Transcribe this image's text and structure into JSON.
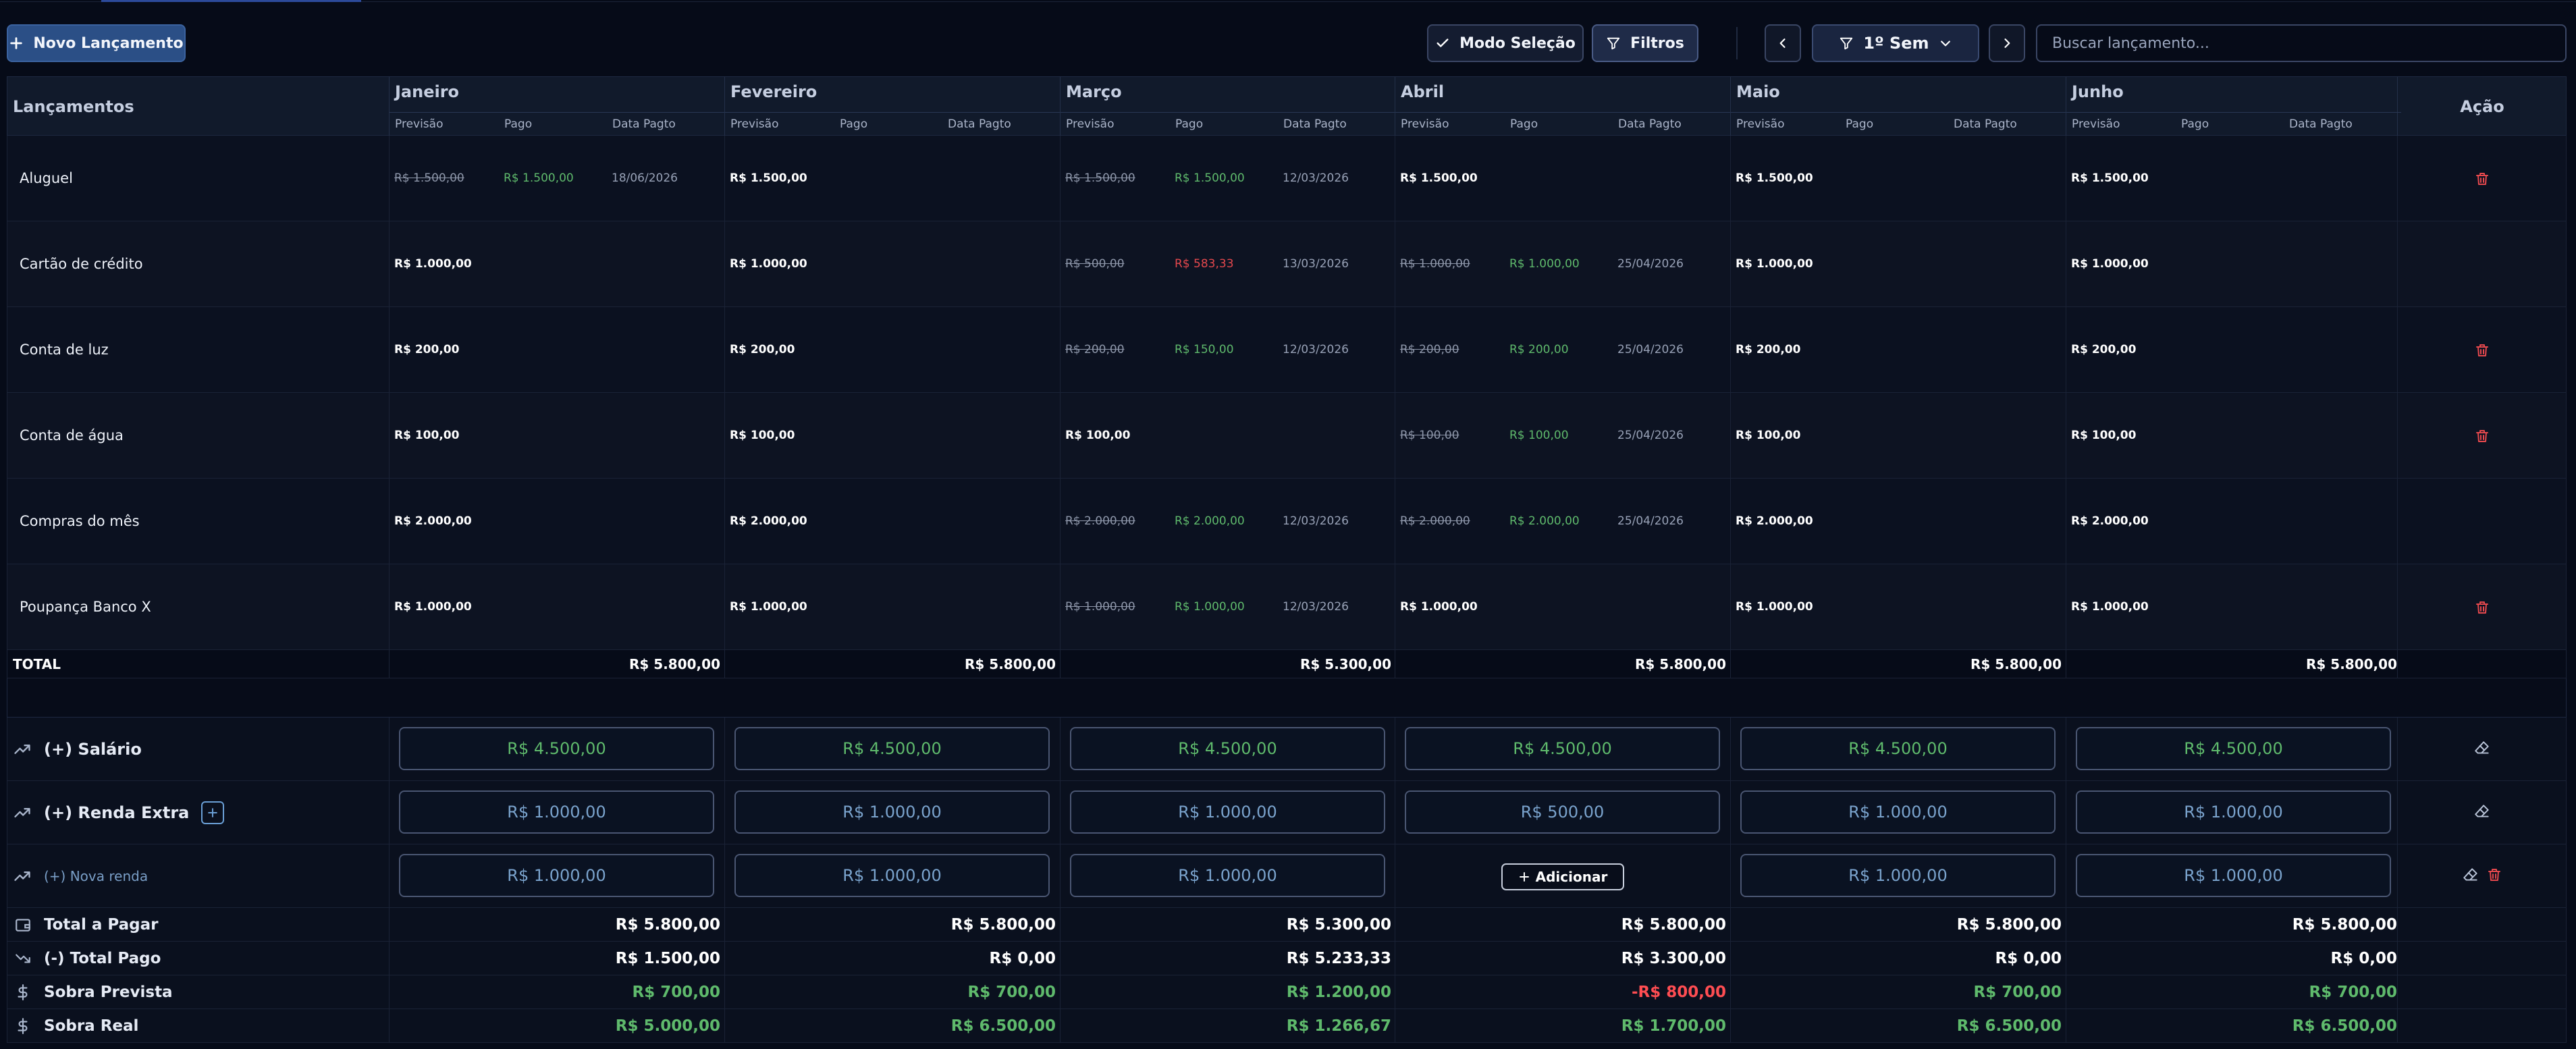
{
  "toolbar": {
    "new_label": "Novo Lançamento",
    "selection_label": "Modo Seleção",
    "filters_label": "Filtros",
    "period_label": "1º Sem",
    "search_placeholder": "Buscar lançamento..."
  },
  "table": {
    "entries_header": "Lançamentos",
    "action_header": "Ação",
    "sub_headers": {
      "forecast": "Previsão",
      "paid": "Pago",
      "date": "Data Pagto"
    },
    "months": [
      "Janeiro",
      "Fevereiro",
      "Março",
      "Abril",
      "Maio",
      "Junho"
    ],
    "rows": [
      {
        "name": "Aluguel",
        "deletable": true,
        "cells": [
          {
            "forecast": "R$ 1.500,00",
            "paid": "R$ 1.500,00",
            "date": "18/06/2026",
            "strike": true,
            "over": false
          },
          {
            "forecast": "R$ 1.500,00",
            "paid": "",
            "date": "",
            "strike": false,
            "over": false
          },
          {
            "forecast": "R$ 1.500,00",
            "paid": "R$ 1.500,00",
            "date": "12/03/2026",
            "strike": true,
            "over": false
          },
          {
            "forecast": "R$ 1.500,00",
            "paid": "",
            "date": "",
            "strike": false,
            "over": false
          },
          {
            "forecast": "R$ 1.500,00",
            "paid": "",
            "date": "",
            "strike": false,
            "over": false
          },
          {
            "forecast": "R$ 1.500,00",
            "paid": "",
            "date": "",
            "strike": false,
            "over": false
          }
        ]
      },
      {
        "name": "Cartão de crédito",
        "deletable": false,
        "cells": [
          {
            "forecast": "R$ 1.000,00",
            "paid": "",
            "date": "",
            "strike": false,
            "over": false
          },
          {
            "forecast": "R$ 1.000,00",
            "paid": "",
            "date": "",
            "strike": false,
            "over": false
          },
          {
            "forecast": "R$ 500,00",
            "paid": "R$ 583,33",
            "date": "13/03/2026",
            "strike": true,
            "over": true
          },
          {
            "forecast": "R$ 1.000,00",
            "paid": "R$ 1.000,00",
            "date": "25/04/2026",
            "strike": true,
            "over": false
          },
          {
            "forecast": "R$ 1.000,00",
            "paid": "",
            "date": "",
            "strike": false,
            "over": false
          },
          {
            "forecast": "R$ 1.000,00",
            "paid": "",
            "date": "",
            "strike": false,
            "over": false
          }
        ]
      },
      {
        "name": "Conta de luz",
        "deletable": true,
        "cells": [
          {
            "forecast": "R$ 200,00",
            "paid": "",
            "date": "",
            "strike": false,
            "over": false
          },
          {
            "forecast": "R$ 200,00",
            "paid": "",
            "date": "",
            "strike": false,
            "over": false
          },
          {
            "forecast": "R$ 200,00",
            "paid": "R$ 150,00",
            "date": "12/03/2026",
            "strike": true,
            "over": false
          },
          {
            "forecast": "R$ 200,00",
            "paid": "R$ 200,00",
            "date": "25/04/2026",
            "strike": true,
            "over": false
          },
          {
            "forecast": "R$ 200,00",
            "paid": "",
            "date": "",
            "strike": false,
            "over": false
          },
          {
            "forecast": "R$ 200,00",
            "paid": "",
            "date": "",
            "strike": false,
            "over": false
          }
        ]
      },
      {
        "name": "Conta de água",
        "deletable": true,
        "cells": [
          {
            "forecast": "R$ 100,00",
            "paid": "",
            "date": "",
            "strike": false,
            "over": false
          },
          {
            "forecast": "R$ 100,00",
            "paid": "",
            "date": "",
            "strike": false,
            "over": false
          },
          {
            "forecast": "R$ 100,00",
            "paid": "",
            "date": "",
            "strike": false,
            "over": false
          },
          {
            "forecast": "R$ 100,00",
            "paid": "R$ 100,00",
            "date": "25/04/2026",
            "strike": true,
            "over": false
          },
          {
            "forecast": "R$ 100,00",
            "paid": "",
            "date": "",
            "strike": false,
            "over": false
          },
          {
            "forecast": "R$ 100,00",
            "paid": "",
            "date": "",
            "strike": false,
            "over": false
          }
        ]
      },
      {
        "name": "Compras do mês",
        "deletable": false,
        "cells": [
          {
            "forecast": "R$ 2.000,00",
            "paid": "",
            "date": "",
            "strike": false,
            "over": false
          },
          {
            "forecast": "R$ 2.000,00",
            "paid": "",
            "date": "",
            "strike": false,
            "over": false
          },
          {
            "forecast": "R$ 2.000,00",
            "paid": "R$ 2.000,00",
            "date": "12/03/2026",
            "strike": true,
            "over": false
          },
          {
            "forecast": "R$ 2.000,00",
            "paid": "R$ 2.000,00",
            "date": "25/04/2026",
            "strike": true,
            "over": false
          },
          {
            "forecast": "R$ 2.000,00",
            "paid": "",
            "date": "",
            "strike": false,
            "over": false
          },
          {
            "forecast": "R$ 2.000,00",
            "paid": "",
            "date": "",
            "strike": false,
            "over": false
          }
        ]
      },
      {
        "name": "Poupança Banco X",
        "deletable": true,
        "cells": [
          {
            "forecast": "R$ 1.000,00",
            "paid": "",
            "date": "",
            "strike": false,
            "over": false
          },
          {
            "forecast": "R$ 1.000,00",
            "paid": "",
            "date": "",
            "strike": false,
            "over": false
          },
          {
            "forecast": "R$ 1.000,00",
            "paid": "R$ 1.000,00",
            "date": "12/03/2026",
            "strike": true,
            "over": false
          },
          {
            "forecast": "R$ 1.000,00",
            "paid": "",
            "date": "",
            "strike": false,
            "over": false
          },
          {
            "forecast": "R$ 1.000,00",
            "paid": "",
            "date": "",
            "strike": false,
            "over": false
          },
          {
            "forecast": "R$ 1.000,00",
            "paid": "",
            "date": "",
            "strike": false,
            "over": false
          }
        ]
      }
    ],
    "total": {
      "label": "TOTAL",
      "values": [
        "R$ 5.800,00",
        "R$ 5.800,00",
        "R$ 5.300,00",
        "R$ 5.800,00",
        "R$ 5.800,00",
        "R$ 5.800,00"
      ]
    }
  },
  "incomes": [
    {
      "label": "(+) Salário",
      "style": "green",
      "muted": false,
      "has_add": false,
      "has_delete": false,
      "values": [
        "R$ 4.500,00",
        "R$ 4.500,00",
        "R$ 4.500,00",
        "R$ 4.500,00",
        "R$ 4.500,00",
        "R$ 4.500,00"
      ]
    },
    {
      "label": "(+) Renda Extra",
      "style": "blue",
      "muted": false,
      "has_add": true,
      "has_delete": false,
      "values": [
        "R$ 1.000,00",
        "R$ 1.000,00",
        "R$ 1.000,00",
        "R$ 500,00",
        "R$ 1.000,00",
        "R$ 1.000,00"
      ]
    },
    {
      "label": "(+) Nova renda",
      "style": "blue",
      "muted": true,
      "has_add": false,
      "has_delete": true,
      "values": [
        "R$ 1.000,00",
        "R$ 1.000,00",
        "R$ 1.000,00",
        "",
        "R$ 1.000,00",
        "R$ 1.000,00"
      ],
      "add_label": "Adicionar"
    }
  ],
  "summary": [
    {
      "label": "Total a Pagar",
      "icon": "wallet-icon",
      "colors": [
        "w",
        "w",
        "w",
        "w",
        "w",
        "w"
      ],
      "values": [
        "R$ 5.800,00",
        "R$ 5.800,00",
        "R$ 5.300,00",
        "R$ 5.800,00",
        "R$ 5.800,00",
        "R$ 5.800,00"
      ]
    },
    {
      "label": "(-) Total Pago",
      "icon": "trending-down-icon",
      "colors": [
        "w",
        "w",
        "w",
        "w",
        "w",
        "w"
      ],
      "values": [
        "R$ 1.500,00",
        "R$ 0,00",
        "R$ 5.233,33",
        "R$ 3.300,00",
        "R$ 0,00",
        "R$ 0,00"
      ]
    },
    {
      "label": "Sobra Prevista",
      "icon": "dollar-icon",
      "colors": [
        "g",
        "g",
        "g",
        "r",
        "g",
        "g"
      ],
      "values": [
        "R$ 700,00",
        "R$ 700,00",
        "R$ 1.200,00",
        "-R$ 800,00",
        "R$ 700,00",
        "R$ 700,00"
      ]
    },
    {
      "label": "Sobra Real",
      "icon": "dollar-icon",
      "colors": [
        "g",
        "g",
        "g",
        "g",
        "g",
        "g"
      ],
      "values": [
        "R$ 5.000,00",
        "R$ 6.500,00",
        "R$ 1.266,67",
        "R$ 1.700,00",
        "R$ 6.500,00",
        "R$ 6.500,00"
      ]
    }
  ],
  "colors": {
    "background": "#060b18",
    "accent": "#2b4f86",
    "green": "#5fba6c",
    "red": "#ff4d52",
    "blue": "#7aa3cd"
  }
}
